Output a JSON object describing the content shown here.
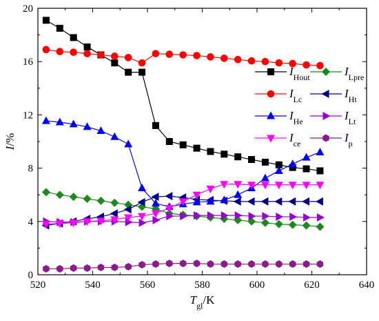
{
  "chart_data": {
    "type": "line",
    "xlabel": {
      "main": "T",
      "sub": "gl",
      "unit": "/K"
    },
    "ylabel": {
      "main": "I",
      "unit": "/%"
    },
    "xlim": [
      520,
      640
    ],
    "ylim": [
      0,
      20
    ],
    "xticks": [
      520,
      540,
      560,
      580,
      600,
      620,
      640
    ],
    "yticks": [
      0,
      4,
      8,
      12,
      16,
      20
    ],
    "x": [
      523,
      528,
      533,
      538,
      543,
      548,
      553,
      558,
      563,
      568,
      573,
      578,
      583,
      588,
      593,
      598,
      603,
      608,
      613,
      618,
      623
    ],
    "legend_placement": "top-right",
    "grid": false,
    "series": [
      {
        "name_main": "I",
        "name_sub": "Hout",
        "color": "#000000",
        "marker": "square",
        "values": [
          19.1,
          18.5,
          17.8,
          17.1,
          16.5,
          15.9,
          15.2,
          15.2,
          11.2,
          10.0,
          9.75,
          9.5,
          9.25,
          9.05,
          8.85,
          8.65,
          8.45,
          8.25,
          8.05,
          7.95,
          7.8
        ]
      },
      {
        "name_main": "I",
        "name_sub": "Lpre",
        "color": "#1a8a1a",
        "marker": "diamond",
        "values": [
          6.2,
          6.0,
          5.85,
          5.7,
          5.55,
          5.4,
          5.25,
          5.1,
          4.95,
          4.6,
          4.5,
          4.4,
          4.3,
          4.2,
          4.1,
          4.0,
          3.9,
          3.8,
          3.75,
          3.7,
          3.6
        ]
      },
      {
        "name_main": "I",
        "name_sub": "Lc",
        "color": "#ff0000",
        "marker": "circle",
        "values": [
          16.9,
          16.75,
          16.7,
          16.6,
          16.5,
          16.4,
          16.3,
          15.9,
          16.6,
          16.55,
          16.5,
          16.45,
          16.35,
          16.25,
          16.15,
          16.05,
          16.0,
          15.9,
          15.85,
          15.75,
          15.7
        ]
      },
      {
        "name_main": "I",
        "name_sub": "Ht",
        "color": "#00008b",
        "marker": "triangle-left",
        "values": [
          3.7,
          3.85,
          4.0,
          4.2,
          4.35,
          4.6,
          4.9,
          5.45,
          5.85,
          5.9,
          5.8,
          5.65,
          5.6,
          5.55,
          5.5,
          5.5,
          5.5,
          5.5,
          5.5,
          5.5,
          5.5
        ]
      },
      {
        "name_main": "I",
        "name_sub": "He",
        "color": "#0000ff",
        "marker": "triangle-up",
        "values": [
          11.55,
          11.45,
          11.3,
          11.1,
          10.8,
          10.35,
          9.8,
          6.5,
          5.35,
          5.1,
          5.3,
          5.45,
          5.5,
          5.6,
          6.0,
          6.5,
          7.25,
          7.8,
          8.3,
          8.8,
          9.2
        ]
      },
      {
        "name_main": "I",
        "name_sub": "Lt",
        "color": "#9400d3",
        "marker": "triangle-right",
        "values": [
          4.0,
          3.95,
          3.95,
          4.0,
          4.0,
          4.0,
          3.95,
          3.9,
          4.1,
          4.4,
          4.4,
          4.45,
          4.45,
          4.45,
          4.45,
          4.4,
          4.4,
          4.35,
          4.35,
          4.3,
          4.3
        ]
      },
      {
        "name_main": "I",
        "name_sub": "ce",
        "color": "#ff00ff",
        "marker": "triangle-down",
        "values": [
          3.8,
          3.85,
          3.9,
          4.0,
          4.05,
          4.15,
          4.3,
          4.4,
          4.6,
          5.0,
          5.5,
          6.0,
          6.45,
          6.8,
          6.8,
          6.75,
          6.75,
          6.75,
          6.75,
          6.75,
          6.75
        ]
      },
      {
        "name_main": "I",
        "name_sub": "p",
        "color": "#8b1a8b",
        "marker": "hexagon",
        "values": [
          0.45,
          0.45,
          0.5,
          0.5,
          0.55,
          0.55,
          0.6,
          0.75,
          0.8,
          0.85,
          0.85,
          0.85,
          0.8,
          0.8,
          0.8,
          0.8,
          0.8,
          0.8,
          0.8,
          0.8,
          0.8
        ]
      }
    ]
  }
}
